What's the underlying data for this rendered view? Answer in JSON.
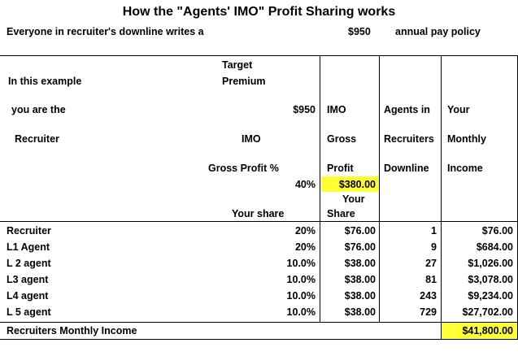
{
  "title": "How the \"Agents' IMO\" Profit Sharing works",
  "subtitle": {
    "text": "Everyone in recruiter's downline writes a",
    "amount": "$950",
    "policy": "annual pay policy"
  },
  "header": {
    "col1": [
      "In this example",
      "you are the",
      "Recruiter"
    ],
    "target_premium": [
      "Target",
      "Premium"
    ],
    "premium_value": "$950",
    "imo_label": "IMO",
    "gross_profit_pct_label": "Gross Profit %",
    "gross_profit_pct": "40%",
    "your_share_label": "Your share",
    "col3": [
      "IMO",
      "Gross",
      "Profit"
    ],
    "gross_profit_value": "$380.00",
    "col3_share": [
      "Your",
      "Share"
    ],
    "col4": [
      "Agents in",
      "Recruiters",
      "Downline"
    ],
    "col5": [
      "Your",
      "Monthly",
      "Income"
    ]
  },
  "rows": [
    {
      "label": "Recruiter",
      "pct": "20%",
      "share": "$76.00",
      "agents": "1",
      "income": "$76.00"
    },
    {
      "label": "L1 Agent",
      "pct": "20%",
      "share": "$76.00",
      "agents": "9",
      "income": "$684.00"
    },
    {
      "label": "L 2 agent",
      "pct": "10.0%",
      "share": "$38.00",
      "agents": "27",
      "income": "$1,026.00"
    },
    {
      "label": "L3 agent",
      "pct": "10.0%",
      "share": "$38.00",
      "agents": "81",
      "income": "$3,078.00"
    },
    {
      "label": "L4 agent",
      "pct": "10.0%",
      "share": "$38.00",
      "agents": "243",
      "income": "$9,234.00"
    },
    {
      "label": "L 5 agent",
      "pct": "10.0%",
      "share": "$38.00",
      "agents": "729",
      "income": "$27,702.00"
    }
  ],
  "total": {
    "label": "Recruiters Monthly Income",
    "value": "$41,800.00"
  },
  "colors": {
    "highlight": "#ffff33"
  }
}
